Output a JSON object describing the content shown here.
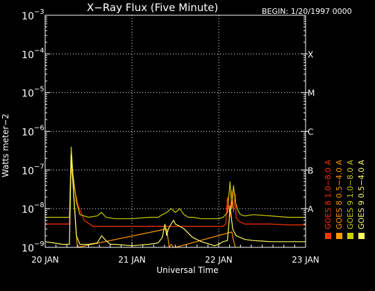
{
  "chart_data": {
    "type": "line",
    "title": "X−Ray Flux (Five Minute)",
    "begin": "BEGIN: 1/20/1997 0000",
    "xlabel": "Universal Time",
    "ylabel": "Watts meter−2",
    "yscale": "log",
    "ylim": [
      1e-09,
      0.001
    ],
    "xlim": [
      0,
      3
    ],
    "x_ticks": [
      {
        "value": 0,
        "label": "20 JAN"
      },
      {
        "value": 1,
        "label": "21 JAN"
      },
      {
        "value": 2,
        "label": "22 JAN"
      },
      {
        "value": 3,
        "label": "23 JAN"
      }
    ],
    "y_ticks": [
      {
        "value": -9,
        "label": "10",
        "exp": "−9"
      },
      {
        "value": -8,
        "label": "10",
        "exp": "−8"
      },
      {
        "value": -7,
        "label": "10",
        "exp": "−7"
      },
      {
        "value": -6,
        "label": "10",
        "exp": "−6"
      },
      {
        "value": -5,
        "label": "10",
        "exp": "−5"
      },
      {
        "value": -4,
        "label": "10",
        "exp": "−4"
      },
      {
        "value": -3,
        "label": "10",
        "exp": "−3"
      }
    ],
    "flare_classes": [
      {
        "value": -8,
        "label": "A"
      },
      {
        "value": -7,
        "label": "B"
      },
      {
        "value": -6,
        "label": "C"
      },
      {
        "value": -5,
        "label": "M"
      },
      {
        "value": -4,
        "label": "X"
      }
    ],
    "grid": true,
    "series": [
      {
        "name": "GOES 8  1.0−8.0 A",
        "color": "#ff3300",
        "x": [
          0,
          0.2,
          0.28,
          0.3,
          0.32,
          0.38,
          0.45,
          0.55,
          0.7,
          0.85,
          1.0,
          1.2,
          1.4,
          1.6,
          1.8,
          2.0,
          2.05,
          2.08,
          2.1,
          2.13,
          2.15,
          2.17,
          2.19,
          2.2,
          2.22,
          2.25,
          2.3,
          2.4,
          2.6,
          2.8,
          3.0
        ],
        "y": [
          4e-09,
          4e-09,
          4e-09,
          1.3e-07,
          5e-08,
          1.2e-08,
          5e-09,
          3.5e-09,
          3.5e-09,
          3.5e-09,
          3.5e-09,
          3.5e-09,
          3.5e-09,
          3.5e-09,
          3.5e-09,
          3.5e-09,
          3.5e-09,
          4e-09,
          2e-08,
          6e-09,
          3e-08,
          8e-09,
          2.5e-08,
          6e-09,
          5e-09,
          4.5e-09,
          4e-09,
          4e-09,
          4e-09,
          3.8e-09,
          3.8e-09
        ]
      },
      {
        "name": "GOES 8  0.5−4.0 A",
        "color": "#ff9900",
        "x": [
          0.3,
          0.32,
          0.34,
          0.37,
          1.4,
          1.43,
          1.45,
          1.48,
          1.5,
          2.15,
          2.17,
          2.19
        ],
        "y": [
          3e-07,
          6e-08,
          1e-08,
          1e-09,
          3e-09,
          1e-09,
          1.2e-09,
          1e-09,
          1e-09,
          2.5e-09,
          1.5e-09,
          1e-09
        ]
      },
      {
        "name": "GOES 9  1.0−8.0 A",
        "color": "#cccc00",
        "x": [
          0,
          0.2,
          0.28,
          0.3,
          0.32,
          0.36,
          0.4,
          0.5,
          0.6,
          0.65,
          0.7,
          0.8,
          0.9,
          1.0,
          1.2,
          1.3,
          1.35,
          1.4,
          1.45,
          1.5,
          1.55,
          1.6,
          1.65,
          1.7,
          1.8,
          1.9,
          2.0,
          2.05,
          2.1,
          2.13,
          2.15,
          2.17,
          2.19,
          2.22,
          2.25,
          2.3,
          2.4,
          2.6,
          2.8,
          3.0
        ],
        "y": [
          6e-09,
          6e-09,
          6e-09,
          4e-07,
          8e-08,
          1.5e-08,
          7e-09,
          6e-09,
          6.5e-09,
          8e-09,
          6e-09,
          5.5e-09,
          5.5e-09,
          5.5e-09,
          6e-09,
          6e-09,
          7e-09,
          8e-09,
          1e-08,
          8e-09,
          1e-08,
          7e-09,
          6e-09,
          6e-09,
          5.5e-09,
          5.5e-09,
          5.5e-09,
          6e-09,
          8e-09,
          5e-08,
          1e-08,
          4e-08,
          1.5e-08,
          9e-09,
          7e-09,
          6.5e-09,
          7e-09,
          6.5e-09,
          6e-09,
          6e-09
        ]
      },
      {
        "name": "GOES 9  0.5−4.0 A",
        "color": "#ffff66",
        "x": [
          0,
          0.1,
          0.2,
          0.28,
          0.3,
          0.33,
          0.36,
          0.4,
          0.5,
          0.6,
          0.65,
          0.7,
          0.75,
          0.8,
          1.0,
          1.2,
          1.3,
          1.35,
          1.38,
          1.4,
          1.42,
          1.45,
          1.48,
          1.5,
          1.55,
          1.6,
          1.7,
          1.8,
          1.9,
          1.95,
          2.0,
          2.05,
          2.1,
          2.12,
          2.13,
          2.16,
          2.2,
          2.3,
          2.4,
          2.6,
          2.8,
          3.0
        ],
        "y": [
          1.4e-09,
          1.3e-09,
          1.2e-09,
          1.2e-09,
          2.5e-07,
          2e-08,
          2e-09,
          1.2e-09,
          1.2e-09,
          1.3e-09,
          2e-09,
          1.5e-09,
          1.2e-09,
          1.2e-09,
          1.1e-09,
          1.2e-09,
          1.3e-09,
          1.8e-09,
          4e-09,
          2e-09,
          3e-09,
          4e-09,
          5e-09,
          4e-09,
          3.5e-09,
          3e-09,
          1.8e-09,
          1.4e-09,
          1.2e-09,
          1.1e-09,
          1.2e-09,
          1.4e-09,
          1.5e-09,
          5e-09,
          1.2e-08,
          3e-09,
          2e-09,
          1.6e-09,
          1.5e-09,
          1.4e-09,
          1.4e-09,
          1.4e-09
        ]
      }
    ]
  }
}
